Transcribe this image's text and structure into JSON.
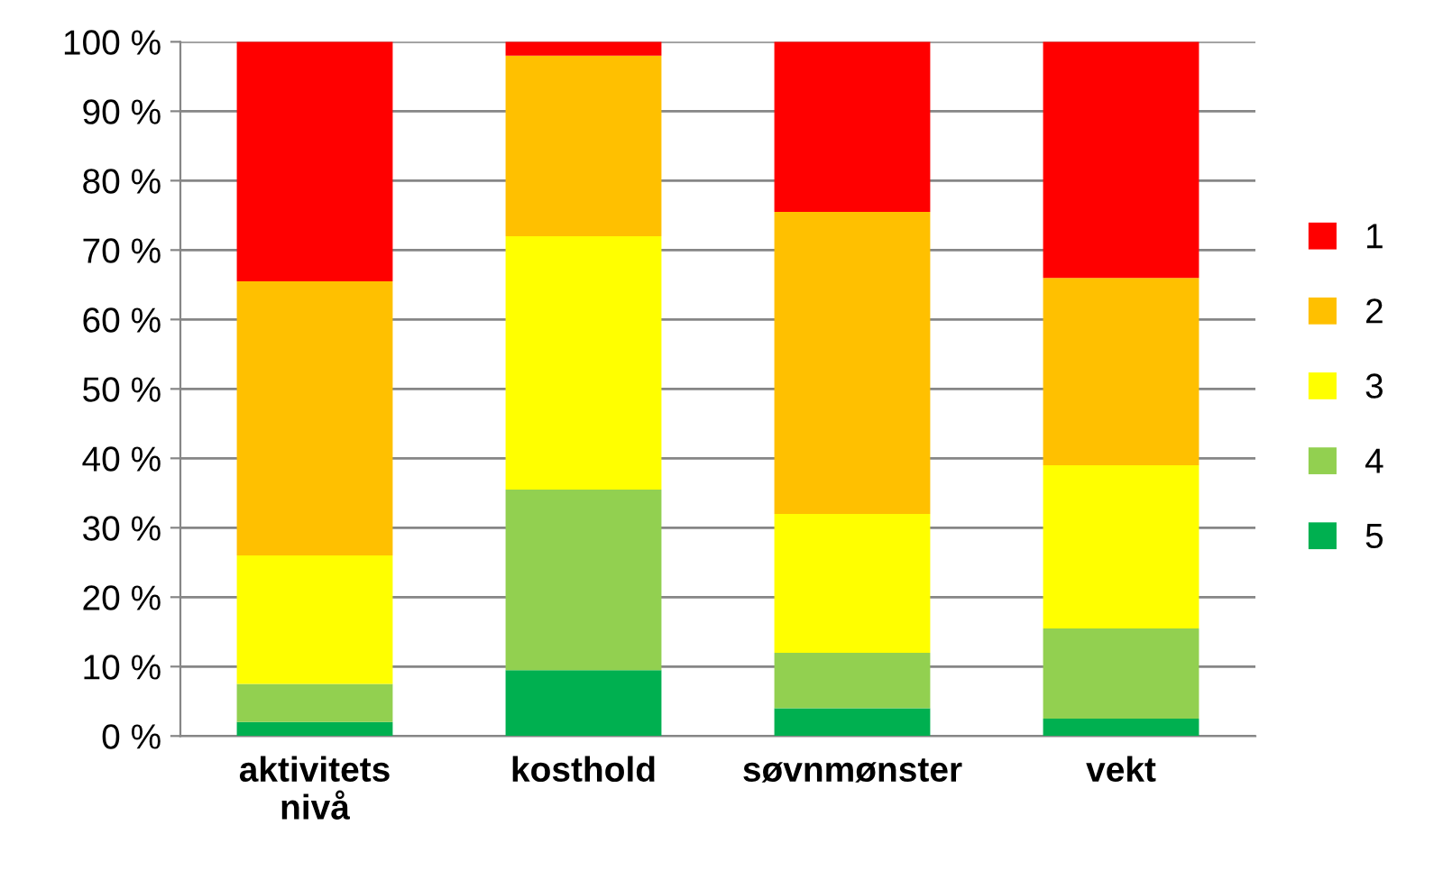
{
  "chart_data": {
    "type": "bar",
    "stacked": true,
    "categories": [
      "aktivitets\nnivå",
      "kosthold",
      "søvnmønster",
      "vekt"
    ],
    "series": [
      {
        "name": "5",
        "color": "#00b050",
        "values": [
          2,
          9.5,
          4,
          2.5
        ]
      },
      {
        "name": "4",
        "color": "#92d050",
        "values": [
          5.5,
          26,
          8,
          13
        ]
      },
      {
        "name": "3",
        "color": "#ffff00",
        "values": [
          18.5,
          36.5,
          20,
          23.5
        ]
      },
      {
        "name": "2",
        "color": "#ffc000",
        "values": [
          39.5,
          26,
          43.5,
          27
        ]
      },
      {
        "name": "1",
        "color": "#ff0000",
        "values": [
          34.5,
          2,
          24.5,
          34
        ]
      }
    ],
    "ylim": [
      0,
      100
    ],
    "yticks": [
      {
        "value": 0,
        "label": "0 %"
      },
      {
        "value": 10,
        "label": "10 %"
      },
      {
        "value": 20,
        "label": "20 %"
      },
      {
        "value": 30,
        "label": "30 %"
      },
      {
        "value": 40,
        "label": "40 %"
      },
      {
        "value": 50,
        "label": "50 %"
      },
      {
        "value": 60,
        "label": "60 %"
      },
      {
        "value": 70,
        "label": "70 %"
      },
      {
        "value": 80,
        "label": "80 %"
      },
      {
        "value": 90,
        "label": "90 %"
      },
      {
        "value": 100,
        "label": "100 %"
      }
    ],
    "grid": "y",
    "legend": "right"
  }
}
